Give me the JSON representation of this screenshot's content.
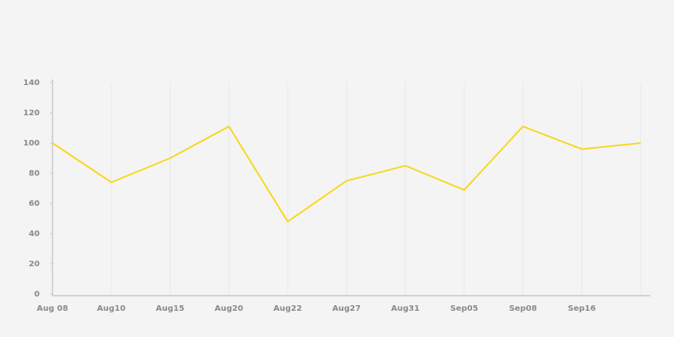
{
  "chart_data": {
    "type": "line",
    "categories": [
      "Aug 08",
      "Aug10",
      "Aug15",
      "Aug20",
      "Aug22",
      "Aug27",
      "Aug31",
      "Sep05",
      "Sep08",
      "Sep16",
      null
    ],
    "series": [
      {
        "color": "#f7d81e",
        "values": [
          100,
          74,
          90,
          111,
          48,
          75,
          85,
          69,
          111,
          96,
          100
        ]
      }
    ],
    "ylim": [
      0,
      140
    ],
    "yticks": [
      0,
      20,
      40,
      60,
      80,
      100,
      120,
      140
    ],
    "grid": true
  }
}
